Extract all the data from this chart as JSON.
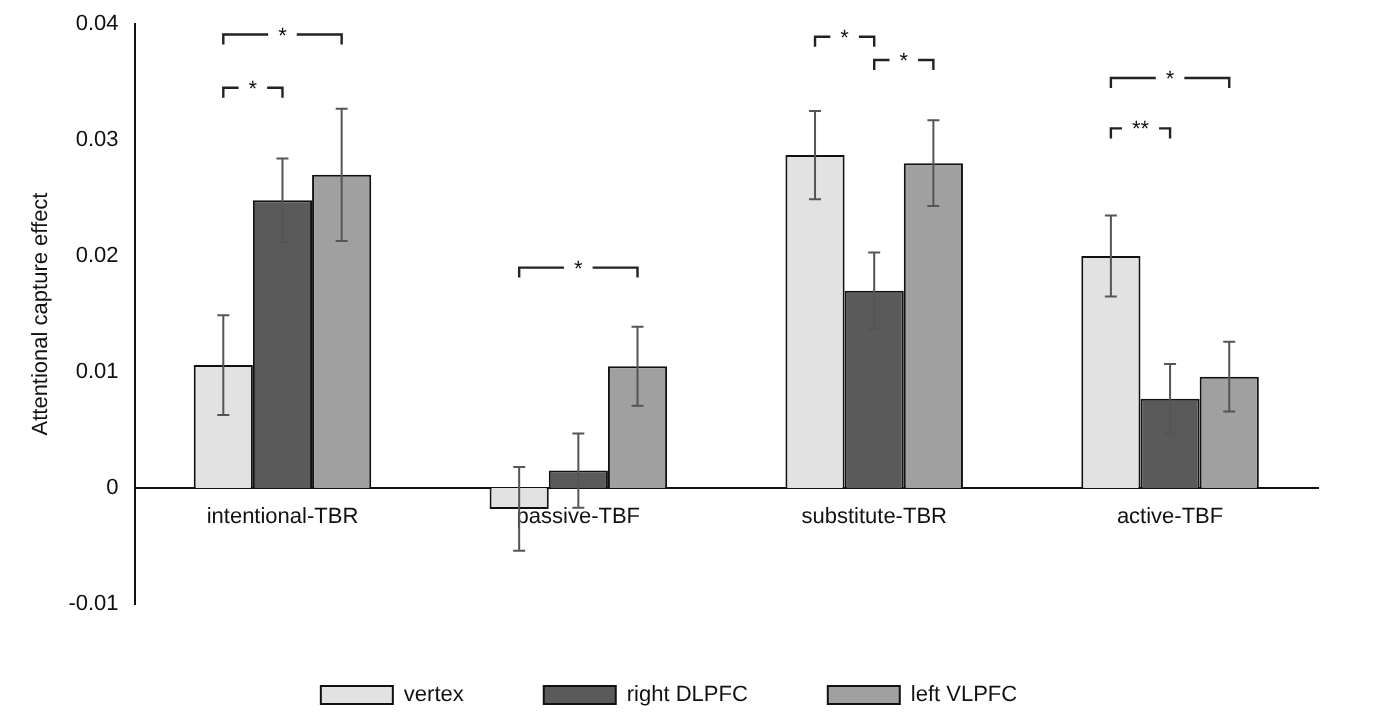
{
  "chart_data": {
    "type": "bar",
    "ylabel": "Attentional capture effect",
    "categories": [
      "intentional-TBR",
      "passive-TBF",
      "substitute-TBR",
      "active-TBF"
    ],
    "series": [
      {
        "name": "vertex",
        "color": "#e2e2e2",
        "values": [
          0.0106,
          -0.0018,
          0.0287,
          0.02
        ],
        "errors": [
          0.0043,
          0.0036,
          0.0038,
          0.0035
        ]
      },
      {
        "name": "right DLPFC",
        "color": "#5a5a5a",
        "values": [
          0.0248,
          0.0015,
          0.017,
          0.0077
        ],
        "errors": [
          0.0036,
          0.0032,
          0.0033,
          0.003
        ]
      },
      {
        "name": "left VLPFC",
        "color": "#a0a0a0",
        "values": [
          0.027,
          0.0105,
          0.028,
          0.0096
        ],
        "errors": [
          0.0057,
          0.0034,
          0.0037,
          0.003
        ]
      }
    ],
    "ylim": [
      -0.01,
      0.04
    ],
    "yticks": [
      -0.01,
      0,
      0.01,
      0.02,
      0.03,
      0.04
    ],
    "grid": false,
    "legend": "bottom",
    "annotations": [
      "*",
      "*",
      "*",
      "*",
      "*",
      "*",
      "**"
    ]
  }
}
